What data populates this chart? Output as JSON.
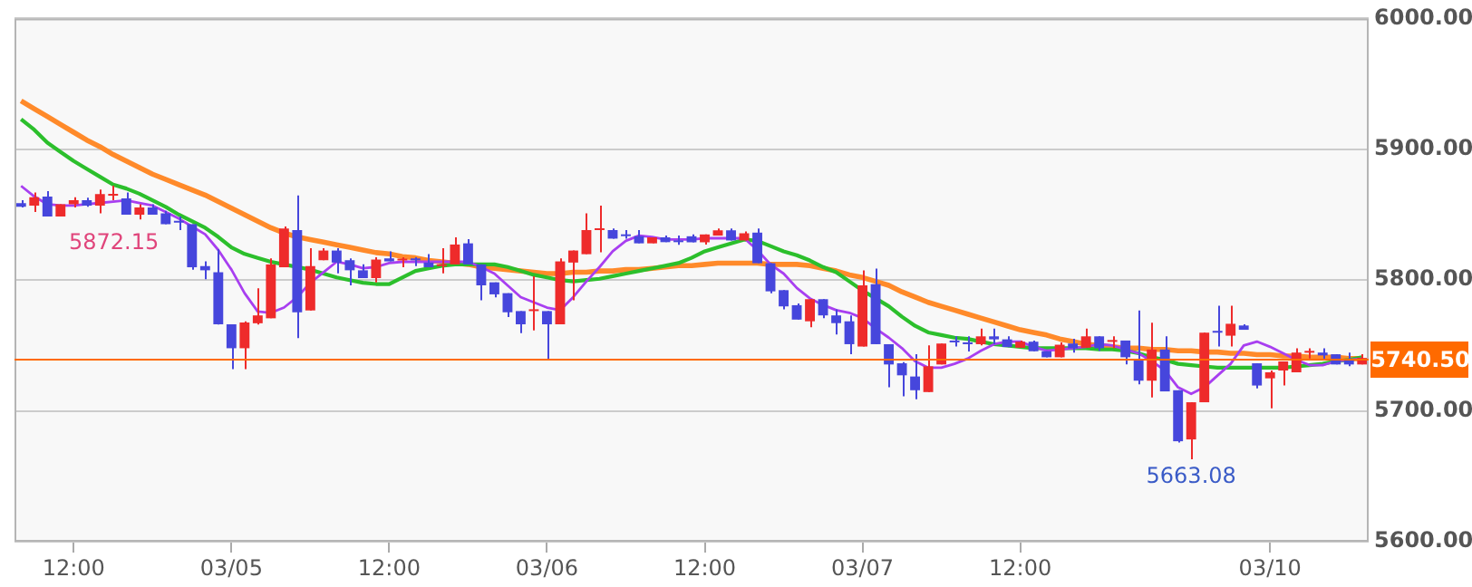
{
  "chart_data": {
    "type": "candlestick",
    "categories": [
      null,
      null,
      null,
      null,
      "12:00",
      null,
      null,
      null,
      null,
      null,
      null,
      null,
      null,
      null,
      null,
      null,
      "03/05",
      null,
      null,
      null,
      null,
      null,
      null,
      null,
      null,
      null,
      null,
      null,
      "12:00",
      null,
      null,
      null,
      null,
      null,
      null,
      null,
      null,
      null,
      null,
      null,
      "03/06",
      null,
      null,
      null,
      null,
      null,
      null,
      null,
      null,
      null,
      null,
      null,
      "12:00",
      null,
      null,
      null,
      null,
      null,
      null,
      null,
      null,
      null,
      null,
      null,
      "03/07",
      null,
      null,
      null,
      null,
      null,
      null,
      null,
      null,
      null,
      null,
      null,
      "12:00",
      null,
      null,
      null,
      null,
      null,
      null,
      null,
      null,
      null,
      null,
      null,
      null,
      null,
      null,
      null,
      null,
      null,
      null,
      "03/10",
      null,
      null,
      null,
      null,
      null,
      null,
      null
    ],
    "ohlc": [
      [
        5858.8,
        5861,
        5855.6,
        5856
      ],
      [
        5857,
        5867,
        5852,
        5863.4
      ],
      [
        5863.8,
        5868,
        5848.7,
        5848.7
      ],
      [
        5848.7,
        5858,
        5848.7,
        5857.9
      ],
      [
        5857.9,
        5863.4,
        5855.6,
        5861
      ],
      [
        5861,
        5863,
        5856,
        5857
      ],
      [
        5857,
        5869.3,
        5851,
        5865.7
      ],
      [
        5864.5,
        5872.15,
        5861,
        5865
      ],
      [
        5862.5,
        5867,
        5850,
        5850
      ],
      [
        5850,
        5858,
        5846.4,
        5855.6
      ],
      [
        5855.6,
        5858,
        5850,
        5850
      ],
      [
        5851,
        5853,
        5842.7,
        5842.7
      ],
      [
        5844.2,
        5848.7,
        5838.2,
        5844
      ],
      [
        5842.7,
        5842.7,
        5808,
        5809.8
      ],
      [
        5810.7,
        5814.4,
        5800.6,
        5807.5
      ],
      [
        5806,
        5823.5,
        5766,
        5766.2
      ],
      [
        5766.2,
        5766.2,
        5731.9,
        5747.9
      ],
      [
        5747.9,
        5768.5,
        5731.9,
        5767.6
      ],
      [
        5767,
        5793.7,
        5766,
        5773
      ],
      [
        5770.8,
        5816.6,
        5770.8,
        5812
      ],
      [
        5809.8,
        5841,
        5809.8,
        5839.5
      ],
      [
        5838.2,
        5864.7,
        5755.7,
        5775.4
      ],
      [
        5776.8,
        5824.4,
        5776.8,
        5810.7
      ],
      [
        5815.2,
        5824.4,
        5815.2,
        5822.6
      ],
      [
        5822.6,
        5824.4,
        5805.2,
        5813.4
      ],
      [
        5815.2,
        5816.6,
        5796,
        5807.5
      ],
      [
        5807.5,
        5812,
        5801.5,
        5801.5
      ],
      [
        5801.5,
        5817.5,
        5798.3,
        5815.7
      ],
      [
        5816.6,
        5822,
        5814.3,
        5814.3
      ],
      [
        5815,
        5817.5,
        5809.8,
        5815.2
      ],
      [
        5815.5,
        5817.5,
        5810.7,
        5815.2
      ],
      [
        5813.4,
        5819.8,
        5809.8,
        5809.8
      ],
      [
        5810.7,
        5824.4,
        5805.2,
        5812
      ],
      [
        5812,
        5832.7,
        5812,
        5827.2
      ],
      [
        5828.1,
        5831.3,
        5812,
        5812
      ],
      [
        5812,
        5812,
        5784.5,
        5796
      ],
      [
        5798.3,
        5798.3,
        5786.8,
        5789.1
      ],
      [
        5790,
        5790,
        5771.7,
        5775.4
      ],
      [
        5776.3,
        5776.3,
        5759.4,
        5766.2
      ],
      [
        5776.3,
        5802.9,
        5761.6,
        5776.5
      ],
      [
        5776.3,
        5776.3,
        5738.7,
        5766.2
      ],
      [
        5766.2,
        5816.6,
        5766.2,
        5814.3
      ],
      [
        5813.4,
        5822.6,
        5784.5,
        5822.6
      ],
      [
        5819.8,
        5851,
        5819.8,
        5838.2
      ],
      [
        5838.2,
        5857,
        5821.2,
        5838.5
      ],
      [
        5838.2,
        5839.5,
        5831.7,
        5831.7
      ],
      [
        5834,
        5838.2,
        5831.7,
        5833.6
      ],
      [
        5833.6,
        5838.2,
        5828.1,
        5828.1
      ],
      [
        5828.1,
        5832.7,
        5828.1,
        5832.7
      ],
      [
        5832.7,
        5834,
        5829,
        5829
      ],
      [
        5830,
        5834,
        5827,
        5829
      ],
      [
        5833.5,
        5834.9,
        5828.9,
        5828.9
      ],
      [
        5828.9,
        5834.9,
        5827.1,
        5834.9
      ],
      [
        5834,
        5839.5,
        5834,
        5838.1
      ],
      [
        5838.1,
        5839.5,
        5830.3,
        5830.3
      ],
      [
        5830.3,
        5837.2,
        5830.3,
        5835.8
      ],
      [
        5836.3,
        5839.5,
        5812.9,
        5812.9
      ],
      [
        5812.9,
        5812.9,
        5790,
        5791.4
      ],
      [
        5792.3,
        5792.3,
        5777.6,
        5779.9
      ],
      [
        5780.8,
        5782.2,
        5769.8,
        5769.8
      ],
      [
        5768.5,
        5785.4,
        5763.9,
        5785.4
      ],
      [
        5785.4,
        5785.4,
        5770.8,
        5773
      ],
      [
        5773,
        5777.6,
        5758.4,
        5767.1
      ],
      [
        5768.5,
        5773,
        5743.3,
        5751
      ],
      [
        5749.2,
        5807.4,
        5749.2,
        5796
      ],
      [
        5796.9,
        5808.8,
        5751,
        5751
      ],
      [
        5751,
        5751,
        5718,
        5735.5
      ],
      [
        5736.4,
        5737.3,
        5711.2,
        5727.2
      ],
      [
        5726.3,
        5743.3,
        5708.9,
        5715.8
      ],
      [
        5714.4,
        5750.1,
        5714.4,
        5734.1
      ],
      [
        5735.5,
        5751.5,
        5735.5,
        5751.5
      ],
      [
        5752.5,
        5757,
        5749.2,
        5752.4
      ],
      [
        5752.4,
        5757,
        5745.5,
        5751
      ],
      [
        5751,
        5763,
        5750.1,
        5757
      ],
      [
        5757,
        5763,
        5751,
        5754.7
      ],
      [
        5754.7,
        5757,
        5748.8,
        5748.8
      ],
      [
        5748.3,
        5753.8,
        5748.3,
        5752.9
      ],
      [
        5752.9,
        5753.8,
        5745.6,
        5745.6
      ],
      [
        5745.6,
        5745.6,
        5741,
        5741
      ],
      [
        5741,
        5752.4,
        5741,
        5750.6
      ],
      [
        5751.5,
        5755.2,
        5744.6,
        5747.9
      ],
      [
        5748.3,
        5763,
        5748.3,
        5757
      ],
      [
        5757,
        5757,
        5746,
        5747.9
      ],
      [
        5752.8,
        5757,
        5747.9,
        5752.9
      ],
      [
        5753.8,
        5753.8,
        5735.5,
        5741
      ],
      [
        5739.1,
        5776.7,
        5720.4,
        5723.1
      ],
      [
        5723.1,
        5767.5,
        5710.3,
        5746.9
      ],
      [
        5746.9,
        5757,
        5714.9,
        5714.9
      ],
      [
        5715.8,
        5715.8,
        5675.9,
        5676.8
      ],
      [
        5678.2,
        5706.6,
        5663.08,
        5706.6
      ],
      [
        5706.6,
        5759.8,
        5706.6,
        5759.8
      ],
      [
        5760,
        5780.4,
        5749.2,
        5759.8
      ],
      [
        5757.5,
        5780.4,
        5749.2,
        5766.6
      ],
      [
        5765.3,
        5766.2,
        5762,
        5762
      ],
      [
        5736.4,
        5736.4,
        5717.2,
        5719.4
      ],
      [
        5724.9,
        5730.9,
        5702,
        5729.5
      ],
      [
        5730.9,
        5737.8,
        5719.4,
        5737.8
      ],
      [
        5729.5,
        5747.9,
        5729.5,
        5744.6
      ],
      [
        5744.5,
        5747.9,
        5740,
        5744.6
      ],
      [
        5744.6,
        5747.9,
        5738.7,
        5742.4
      ],
      [
        5743.3,
        5743.3,
        5735.5,
        5735.5
      ],
      [
        5738.7,
        5744.6,
        5734.1,
        5735.5
      ],
      [
        5735.5,
        5743.3,
        5735.5,
        5740.5
      ]
    ],
    "colors": [
      "#4646dc",
      "#ee2b2b",
      "#4646dc",
      "#ee2b2b",
      "#ee2b2b",
      "#4646dc",
      "#ee2b2b",
      "#ee2b2b",
      "#4646dc",
      "#ee2b2b",
      "#4646dc",
      "#4646dc",
      "#4646dc",
      "#4646dc",
      "#4646dc",
      "#4646dc",
      "#4646dc",
      "#ee2b2b",
      "#ee2b2b",
      "#ee2b2b",
      "#ee2b2b",
      "#4646dc",
      "#ee2b2b",
      "#ee2b2b",
      "#4646dc",
      "#4646dc",
      "#4646dc",
      "#ee2b2b",
      "#4646dc",
      "#ee2b2b",
      "#4646dc",
      "#4646dc",
      "#ee2b2b",
      "#ee2b2b",
      "#4646dc",
      "#4646dc",
      "#4646dc",
      "#4646dc",
      "#4646dc",
      "#ee2b2b",
      "#4646dc",
      "#ee2b2b",
      "#ee2b2b",
      "#ee2b2b",
      "#ee2b2b",
      "#4646dc",
      "#4646dc",
      "#4646dc",
      "#ee2b2b",
      "#4646dc",
      "#4646dc",
      "#4646dc",
      "#ee2b2b",
      "#ee2b2b",
      "#4646dc",
      "#ee2b2b",
      "#4646dc",
      "#4646dc",
      "#4646dc",
      "#4646dc",
      "#ee2b2b",
      "#4646dc",
      "#4646dc",
      "#4646dc",
      "#ee2b2b",
      "#4646dc",
      "#4646dc",
      "#4646dc",
      "#4646dc",
      "#ee2b2b",
      "#ee2b2b",
      "#4646dc",
      "#4646dc",
      "#ee2b2b",
      "#4646dc",
      "#4646dc",
      "#ee2b2b",
      "#4646dc",
      "#4646dc",
      "#ee2b2b",
      "#4646dc",
      "#ee2b2b",
      "#4646dc",
      "#ee2b2b",
      "#4646dc",
      "#4646dc",
      "#ee2b2b",
      "#4646dc",
      "#4646dc",
      "#ee2b2b",
      "#ee2b2b",
      "#4646dc",
      "#ee2b2b",
      "#4646dc",
      "#4646dc",
      "#ee2b2b",
      "#ee2b2b",
      "#ee2b2b",
      "#ee2b2b",
      "#4646dc",
      "#4646dc",
      "#4646dc",
      "#ee2b2b"
    ],
    "series": [
      {
        "type": "line",
        "color": "#a83ff0",
        "values": [
          5872,
          5864,
          5858,
          5857,
          5857,
          5858,
          5859,
          5860,
          5861,
          5859,
          5857,
          5852,
          5847,
          5841,
          5835,
          5823,
          5808,
          5790,
          5776,
          5775,
          5779,
          5787,
          5798,
          5806,
          5814,
          5812,
          5809,
          5810,
          5813,
          5814,
          5814,
          5814,
          5814,
          5814,
          5814,
          5810,
          5805,
          5796,
          5787,
          5783,
          5779,
          5777,
          5787,
          5799,
          5810,
          5822,
          5830,
          5834,
          5833,
          5831,
          5831,
          5831,
          5832,
          5832,
          5832,
          5832,
          5823,
          5812,
          5805,
          5794,
          5786,
          5781,
          5777,
          5775,
          5771,
          5763,
          5756,
          5748,
          5738,
          5733,
          5733,
          5736,
          5740,
          5746,
          5751,
          5753,
          5753,
          5749,
          5746,
          5747,
          5748,
          5749,
          5751,
          5750,
          5747,
          5744,
          5738,
          5731,
          5718,
          5713,
          5718,
          5727,
          5736,
          5750,
          5753,
          5749,
          5744,
          5739,
          5735,
          5735,
          5738,
          5739,
          5740
        ]
      },
      {
        "type": "line",
        "color": "#2cbf2c",
        "values": [
          5923,
          5915,
          5905,
          5898,
          5891,
          5885,
          5879,
          5873,
          5870,
          5866,
          5861,
          5856,
          5850,
          5845,
          5840,
          5833,
          5825,
          5820,
          5817,
          5814,
          5812,
          5810,
          5808,
          5805,
          5802,
          5800,
          5798,
          5797,
          5797,
          5802,
          5807,
          5809,
          5811,
          5812,
          5812,
          5812,
          5812,
          5810,
          5807,
          5804,
          5802,
          5800,
          5799,
          5800,
          5801,
          5803,
          5805,
          5807,
          5809,
          5811,
          5813,
          5817,
          5822,
          5825,
          5828,
          5831,
          5830,
          5826,
          5822,
          5819,
          5815,
          5810,
          5806,
          5799,
          5792,
          5786,
          5780,
          5772,
          5765,
          5760,
          5758,
          5756,
          5755,
          5753,
          5751,
          5750,
          5749,
          5748,
          5748,
          5748,
          5748,
          5748,
          5747,
          5747,
          5746,
          5744,
          5741,
          5739,
          5736,
          5735,
          5734,
          5733,
          5733,
          5733,
          5733,
          5733,
          5733,
          5734,
          5735,
          5736,
          5738,
          5739,
          5741
        ]
      },
      {
        "type": "line",
        "color": "#ff8a2a",
        "values": [
          5937,
          5931,
          5925,
          5919,
          5913,
          5907,
          5902,
          5896,
          5891,
          5886,
          5881,
          5877,
          5873,
          5869,
          5865,
          5860,
          5855,
          5850,
          5845,
          5840,
          5836,
          5833,
          5831,
          5829,
          5827,
          5825,
          5823,
          5821,
          5820,
          5818,
          5817,
          5815,
          5814,
          5813,
          5812,
          5810,
          5809,
          5808,
          5807,
          5806,
          5805,
          5805,
          5806,
          5806,
          5807,
          5807,
          5808,
          5808,
          5809,
          5810,
          5811,
          5811,
          5812,
          5813,
          5813,
          5813,
          5813,
          5812,
          5812,
          5812,
          5811,
          5809,
          5807,
          5804,
          5802,
          5799,
          5796,
          5791,
          5787,
          5783,
          5780,
          5777,
          5774,
          5771,
          5768,
          5765,
          5762,
          5760,
          5758,
          5755,
          5753,
          5751,
          5750,
          5749,
          5748,
          5748,
          5747,
          5747,
          5746,
          5746,
          5745,
          5745,
          5744,
          5744,
          5743,
          5743,
          5742,
          5742,
          5741,
          5741,
          5741,
          5740,
          5740
        ]
      }
    ],
    "ylim": [
      5600,
      6000
    ],
    "yticks": [
      {
        "value": 5600,
        "label": "5600.00"
      },
      {
        "value": 5700,
        "label": "5700.00"
      },
      {
        "value": 5800,
        "label": "5800.00"
      },
      {
        "value": 5900,
        "label": "5900.00"
      },
      {
        "value": 6000,
        "label": "6000.00"
      }
    ],
    "ref_lines": [
      {
        "axis": "y",
        "value": 5740.5,
        "label": "5740.50",
        "color": "#ff6a00"
      }
    ],
    "annotations": [
      "5872.15",
      {
        "text": "5663.08",
        "y": 5663.08
      }
    ],
    "grid": "y"
  }
}
